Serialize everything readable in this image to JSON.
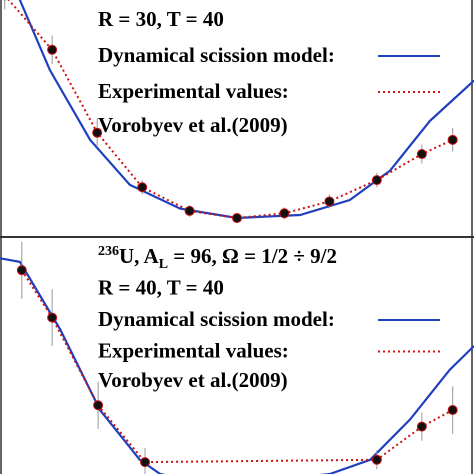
{
  "chart_data": [
    {
      "type": "line",
      "xlim": [
        0,
        10
      ],
      "ylim": [
        0,
        10
      ],
      "annotations": [
        "R = 30, T = 40",
        "Vorobyev et al.(2009)"
      ],
      "series": [
        {
          "name": "Dynamical scission model:",
          "color": "#1f3fbf",
          "style": "solid",
          "x": [
            0,
            0.42,
            1.05,
            1.9,
            2.74,
            3.8,
            5,
            6.33,
            7.38,
            8.23,
            9.07,
            10
          ],
          "values": [
            11.5,
            10,
            7.05,
            4.1,
            2.2,
            1.2,
            0.8,
            0.93,
            1.56,
            2.8,
            4.9,
            6.6
          ]
        },
        {
          "name": "Experimental values:",
          "color": "#cc1111",
          "style": "dotted",
          "markers": true,
          "x": [
            0.1,
            1.1,
            2.05,
            3.0,
            4.0,
            5.0,
            6.0,
            6.95,
            7.95,
            8.9,
            9.55
          ],
          "values": [
            10.2,
            7.9,
            4.4,
            2.1,
            1.1,
            0.8,
            1.0,
            1.5,
            2.4,
            3.5,
            4.1
          ],
          "errors": [
            0.6,
            0.6,
            0.6,
            0.3,
            0.25,
            0.2,
            0.25,
            0.3,
            0.3,
            0.4,
            0.5
          ]
        }
      ]
    },
    {
      "type": "line",
      "xlim": [
        0,
        10
      ],
      "ylim": [
        0,
        10
      ],
      "label_parts": {
        "mass_number": "236",
        "element": "U, A",
        "subscript": "L",
        "rest": " = 96, Ω = 1/2 ÷ 9/2"
      },
      "annotations": [
        "R = 40, T = 40",
        "Vorobyev et al.(2009)"
      ],
      "series": [
        {
          "name": "Dynamical scission model:",
          "color": "#1f3fbf",
          "style": "solid",
          "x": [
            0,
            0.42,
            1.27,
            2.11,
            2.95,
            3.38,
            4.5,
            6.96,
            7.81,
            8.65,
            9.49,
            10
          ],
          "values": [
            9.1,
            8.95,
            6.1,
            2.7,
            0.6,
            0,
            -0.5,
            0,
            0.6,
            2.3,
            4.4,
            5.4
          ]
        },
        {
          "name": "Experimental values:",
          "color": "#cc1111",
          "style": "dotted",
          "markers": true,
          "x": [
            0.46,
            1.1,
            2.07,
            3.06,
            7.95,
            8.9,
            9.55
          ],
          "values": [
            8.6,
            6.6,
            2.9,
            0.5,
            0.6,
            2.0,
            2.7
          ],
          "errors": [
            1.2,
            1.2,
            1.0,
            0.6,
            0.4,
            0.6,
            1.0
          ]
        }
      ]
    }
  ]
}
